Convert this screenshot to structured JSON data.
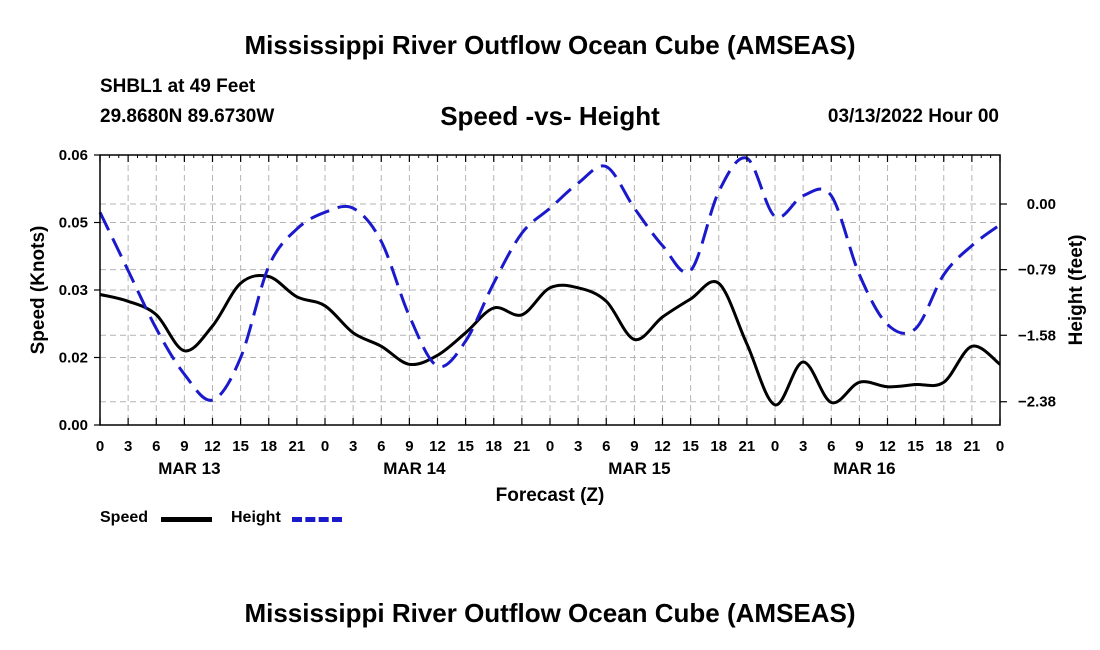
{
  "header": {
    "title": "Mississippi River Outflow Ocean Cube (AMSEAS)",
    "station": "SHBL1 at 49 Feet",
    "coords": "29.8680N  89.6730W",
    "subtitle": "Speed -vs- Height",
    "date": "03/13/2022 Hour 00"
  },
  "footer": {
    "title": "Mississippi River Outflow Ocean Cube (AMSEAS)"
  },
  "legend": {
    "speed": "Speed",
    "height": "Height"
  },
  "colors": {
    "speed": "#000000",
    "height": "#1a1acc",
    "grid": "#b4b4b4"
  },
  "chart_data": {
    "type": "line",
    "xlabel": "Forecast (Z)",
    "ylabel_left": "Speed (Knots)",
    "ylabel_right": "Height (feet)",
    "x_range_hours": [
      0,
      96
    ],
    "x_tick_step_hours": 3,
    "x_tick_labels": [
      "0",
      "3",
      "6",
      "9",
      "12",
      "15",
      "18",
      "21",
      "0",
      "3",
      "6",
      "9",
      "12",
      "15",
      "18",
      "21",
      "0",
      "3",
      "6",
      "9",
      "12",
      "15",
      "18",
      "21",
      "0",
      "3",
      "6",
      "9",
      "12",
      "15",
      "18",
      "21",
      "0"
    ],
    "day_labels": [
      {
        "label": "MAR 13",
        "hour": 9
      },
      {
        "label": "MAR 14",
        "hour": 33
      },
      {
        "label": "MAR 15",
        "hour": 57
      },
      {
        "label": "MAR 16",
        "hour": 81
      }
    ],
    "y_left": {
      "min": 0.0,
      "max": 0.06,
      "tick_values": [
        0.0,
        0.02,
        0.03,
        0.05,
        0.06
      ],
      "tick_labels": [
        "0.00",
        "0.02",
        "0.03",
        "0.05",
        "0.06"
      ],
      "tick_positions": [
        0.0,
        0.015,
        0.03,
        0.045,
        0.06
      ]
    },
    "y_right": {
      "tick_values": [
        0.0,
        -0.79,
        -1.58,
        -2.38
      ],
      "tick_labels": [
        "0.00",
        "-0.79",
        "-1.58",
        "-2.38"
      ],
      "min": -2.66,
      "max": 0.59
    },
    "grid": true,
    "series": [
      {
        "name": "Speed",
        "axis": "left",
        "style": "solid",
        "x": [
          0,
          3,
          6,
          9,
          12,
          15,
          18,
          21,
          24,
          27,
          30,
          33,
          36,
          39,
          42,
          45,
          48,
          51,
          54,
          57,
          60,
          63,
          66,
          69,
          72,
          75,
          78,
          81,
          84,
          87,
          90,
          93,
          96
        ],
        "values": [
          0.029,
          0.0275,
          0.0245,
          0.0165,
          0.022,
          0.0315,
          0.033,
          0.0285,
          0.0265,
          0.0205,
          0.0175,
          0.0135,
          0.0155,
          0.0205,
          0.026,
          0.0245,
          0.0305,
          0.0305,
          0.0275,
          0.019,
          0.024,
          0.028,
          0.0315,
          0.018,
          0.0045,
          0.014,
          0.005,
          0.0095,
          0.0085,
          0.009,
          0.0095,
          0.0175,
          0.0135
        ]
      },
      {
        "name": "Height",
        "axis": "right",
        "style": "dashed",
        "x": [
          0,
          3,
          6,
          9,
          12,
          15,
          18,
          21,
          24,
          27,
          30,
          33,
          36,
          39,
          42,
          45,
          48,
          51,
          54,
          57,
          60,
          63,
          66,
          69,
          72,
          75,
          78,
          81,
          84,
          87,
          90,
          93,
          96
        ],
        "values": [
          -0.1,
          -0.8,
          -1.5,
          -2.05,
          -2.36,
          -1.85,
          -0.75,
          -0.3,
          -0.1,
          -0.05,
          -0.45,
          -1.35,
          -1.95,
          -1.65,
          -0.95,
          -0.35,
          -0.05,
          0.25,
          0.45,
          -0.05,
          -0.5,
          -0.8,
          0.15,
          0.55,
          -0.15,
          0.1,
          0.1,
          -0.85,
          -1.45,
          -1.5,
          -0.85,
          -0.5,
          -0.25
        ]
      }
    ]
  }
}
